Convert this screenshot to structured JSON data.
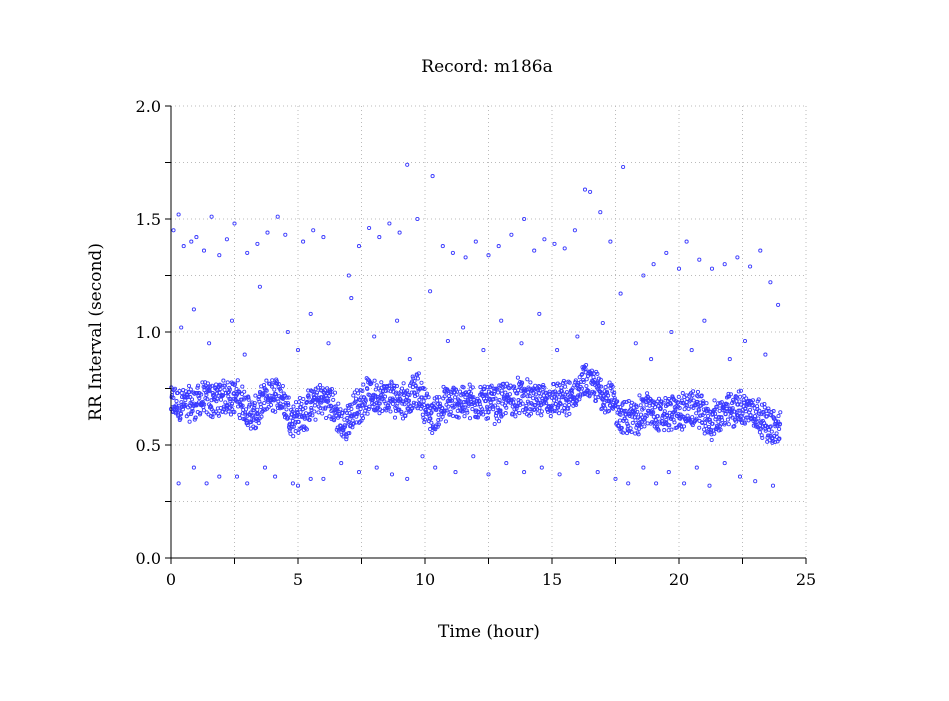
{
  "chart_data": {
    "type": "scatter",
    "title": "Record:  m186a",
    "xlabel": "Time (hour)",
    "ylabel": "RR Interval (second)",
    "xlim": [
      0,
      25
    ],
    "ylim": [
      0.0,
      2.0
    ],
    "xticks": [
      "0",
      "5",
      "10",
      "15",
      "20",
      "25"
    ],
    "xtick_values": [
      0,
      5,
      10,
      15,
      20,
      25
    ],
    "yticks": [
      "0.0",
      "0.5",
      "1.0",
      "1.5",
      "2.0"
    ],
    "ytick_values": [
      0.0,
      0.5,
      1.0,
      1.5,
      2.0
    ],
    "grid": true,
    "grid_style": "dotted",
    "marker": "open-circle",
    "color": "#3a3aff",
    "series": [
      {
        "trend_hours": [
          0.25,
          0.75,
          1.25,
          1.75,
          2.25,
          2.75,
          3.25,
          3.75,
          4.25,
          4.75,
          5.25,
          5.75,
          6.25,
          6.75,
          7.25,
          7.75,
          8.25,
          8.75,
          9.25,
          9.75,
          10.25,
          10.75,
          11.25,
          11.75,
          12.25,
          12.75,
          13.25,
          13.75,
          14.25,
          14.75,
          15.25,
          15.75,
          16.25,
          16.75,
          17.25,
          17.75,
          18.25,
          18.75,
          19.25,
          19.75,
          20.25,
          20.75,
          21.25,
          21.75,
          22.25,
          22.75,
          23.25,
          23.75
        ],
        "trend_rr": [
          0.68,
          0.68,
          0.7,
          0.7,
          0.72,
          0.7,
          0.62,
          0.71,
          0.73,
          0.62,
          0.64,
          0.7,
          0.7,
          0.58,
          0.66,
          0.72,
          0.71,
          0.71,
          0.7,
          0.74,
          0.62,
          0.68,
          0.69,
          0.69,
          0.69,
          0.68,
          0.7,
          0.72,
          0.69,
          0.7,
          0.7,
          0.7,
          0.78,
          0.75,
          0.71,
          0.62,
          0.62,
          0.66,
          0.63,
          0.64,
          0.65,
          0.66,
          0.6,
          0.64,
          0.66,
          0.66,
          0.62,
          0.57
        ],
        "outliers": [
          [
            0.1,
            1.45
          ],
          [
            0.3,
            1.52
          ],
          [
            0.5,
            1.38
          ],
          [
            0.8,
            1.4
          ],
          [
            1.0,
            1.42
          ],
          [
            1.3,
            1.36
          ],
          [
            1.6,
            1.51
          ],
          [
            1.9,
            1.34
          ],
          [
            2.2,
            1.41
          ],
          [
            2.5,
            1.48
          ],
          [
            3.0,
            1.35
          ],
          [
            3.4,
            1.39
          ],
          [
            3.8,
            1.44
          ],
          [
            4.2,
            1.51
          ],
          [
            4.5,
            1.43
          ],
          [
            5.2,
            1.4
          ],
          [
            5.6,
            1.45
          ],
          [
            6.0,
            1.42
          ],
          [
            7.0,
            1.25
          ],
          [
            7.4,
            1.38
          ],
          [
            7.8,
            1.46
          ],
          [
            8.2,
            1.42
          ],
          [
            8.6,
            1.48
          ],
          [
            9.0,
            1.44
          ],
          [
            9.3,
            1.74
          ],
          [
            9.7,
            1.5
          ],
          [
            10.3,
            1.69
          ],
          [
            10.7,
            1.38
          ],
          [
            11.1,
            1.35
          ],
          [
            11.6,
            1.33
          ],
          [
            12.0,
            1.4
          ],
          [
            12.5,
            1.34
          ],
          [
            12.9,
            1.38
          ],
          [
            13.4,
            1.43
          ],
          [
            13.9,
            1.5
          ],
          [
            14.3,
            1.36
          ],
          [
            14.7,
            1.41
          ],
          [
            15.1,
            1.39
          ],
          [
            15.5,
            1.37
          ],
          [
            15.9,
            1.45
          ],
          [
            16.3,
            1.63
          ],
          [
            16.5,
            1.62
          ],
          [
            16.9,
            1.53
          ],
          [
            17.3,
            1.4
          ],
          [
            17.8,
            1.73
          ],
          [
            18.6,
            1.25
          ],
          [
            19.0,
            1.3
          ],
          [
            19.5,
            1.35
          ],
          [
            20.0,
            1.28
          ],
          [
            20.3,
            1.4
          ],
          [
            20.8,
            1.32
          ],
          [
            21.3,
            1.28
          ],
          [
            21.8,
            1.3
          ],
          [
            22.3,
            1.33
          ],
          [
            22.8,
            1.29
          ],
          [
            23.2,
            1.36
          ],
          [
            23.6,
            1.22
          ],
          [
            23.9,
            1.12
          ],
          [
            0.4,
            1.02
          ],
          [
            0.9,
            1.1
          ],
          [
            1.5,
            0.95
          ],
          [
            2.4,
            1.05
          ],
          [
            2.9,
            0.9
          ],
          [
            3.5,
            1.2
          ],
          [
            4.6,
            1.0
          ],
          [
            5.0,
            0.92
          ],
          [
            5.5,
            1.08
          ],
          [
            6.2,
            0.95
          ],
          [
            7.1,
            1.15
          ],
          [
            8.0,
            0.98
          ],
          [
            8.9,
            1.05
          ],
          [
            9.4,
            0.88
          ],
          [
            10.2,
            1.18
          ],
          [
            10.9,
            0.96
          ],
          [
            11.5,
            1.02
          ],
          [
            12.3,
            0.92
          ],
          [
            13.0,
            1.05
          ],
          [
            13.8,
            0.95
          ],
          [
            14.5,
            1.08
          ],
          [
            15.2,
            0.92
          ],
          [
            16.0,
            0.98
          ],
          [
            17.0,
            1.04
          ],
          [
            17.7,
            1.17
          ],
          [
            18.3,
            0.95
          ],
          [
            18.9,
            0.88
          ],
          [
            19.7,
            1.0
          ],
          [
            20.5,
            0.92
          ],
          [
            21.0,
            1.05
          ],
          [
            22.0,
            0.88
          ],
          [
            22.6,
            0.96
          ],
          [
            23.4,
            0.9
          ],
          [
            0.3,
            0.33
          ],
          [
            0.9,
            0.4
          ],
          [
            1.4,
            0.33
          ],
          [
            1.9,
            0.36
          ],
          [
            2.6,
            0.36
          ],
          [
            3.0,
            0.33
          ],
          [
            3.7,
            0.4
          ],
          [
            4.1,
            0.36
          ],
          [
            4.8,
            0.33
          ],
          [
            5.0,
            0.32
          ],
          [
            5.5,
            0.35
          ],
          [
            6.0,
            0.35
          ],
          [
            6.7,
            0.42
          ],
          [
            7.4,
            0.38
          ],
          [
            8.1,
            0.4
          ],
          [
            8.7,
            0.37
          ],
          [
            9.3,
            0.35
          ],
          [
            9.9,
            0.45
          ],
          [
            10.4,
            0.4
          ],
          [
            11.2,
            0.38
          ],
          [
            11.9,
            0.45
          ],
          [
            12.5,
            0.37
          ],
          [
            13.2,
            0.42
          ],
          [
            13.9,
            0.38
          ],
          [
            14.6,
            0.4
          ],
          [
            15.3,
            0.37
          ],
          [
            16.0,
            0.42
          ],
          [
            16.8,
            0.38
          ],
          [
            17.5,
            0.35
          ],
          [
            18.0,
            0.33
          ],
          [
            18.6,
            0.4
          ],
          [
            19.1,
            0.33
          ],
          [
            19.6,
            0.38
          ],
          [
            20.2,
            0.33
          ],
          [
            20.7,
            0.4
          ],
          [
            21.2,
            0.32
          ],
          [
            21.8,
            0.42
          ],
          [
            22.4,
            0.36
          ],
          [
            23.0,
            0.34
          ],
          [
            23.7,
            0.32
          ]
        ]
      }
    ]
  }
}
